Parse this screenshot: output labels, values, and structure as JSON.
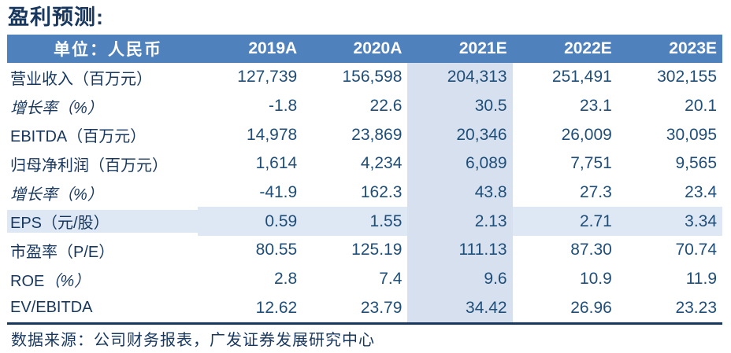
{
  "title": "盈利预测:",
  "colors": {
    "header-bg": "#4F81BD",
    "header-text": "#FFFFFF",
    "label-text": "#17375E",
    "number-text": "#1F4E79",
    "col-highlight": "#D6E0EE",
    "row-highlight": "#DEE8F4",
    "rule": "#17375E",
    "page-bg": "#FFFFFF"
  },
  "table": {
    "unit_header": "单位：人民币",
    "columns": [
      "2019A",
      "2020A",
      "2021E",
      "2022E",
      "2023E"
    ],
    "highlight_column": "2021E",
    "rows": [
      {
        "label": "营业收入（百万元）",
        "italic": false,
        "highlight_row": false,
        "values": [
          "127,739",
          "156,598",
          "204,313",
          "251,491",
          "302,155"
        ]
      },
      {
        "label": "增长率（%）",
        "italic": true,
        "highlight_row": false,
        "values": [
          "-1.8",
          "22.6",
          "30.5",
          "23.1",
          "20.1"
        ]
      },
      {
        "label": "EBITDA（百万元）",
        "italic": false,
        "highlight_row": false,
        "values": [
          "14,978",
          "23,869",
          "20,346",
          "26,009",
          "30,095"
        ]
      },
      {
        "label": "归母净利润（百万元）",
        "italic": false,
        "highlight_row": false,
        "values": [
          "1,614",
          "4,234",
          "6,089",
          "7,751",
          "9,565"
        ]
      },
      {
        "label": "增长率（%）",
        "italic": true,
        "highlight_row": false,
        "values": [
          "-41.9",
          "162.3",
          "43.8",
          "27.3",
          "23.4"
        ]
      },
      {
        "label": "EPS（元/股）",
        "italic": false,
        "highlight_row": true,
        "values": [
          "0.59",
          "1.55",
          "2.13",
          "2.71",
          "3.34"
        ]
      },
      {
        "label": "市盈率（P/E）",
        "italic": false,
        "highlight_row": false,
        "values": [
          "80.55",
          "125.19",
          "111.13",
          "87.30",
          "70.74"
        ]
      },
      {
        "label": "ROE",
        "suffix": "（%）",
        "suffix_italic": true,
        "italic": false,
        "highlight_row": false,
        "values": [
          "2.8",
          "7.4",
          "9.6",
          "10.9",
          "11.9"
        ]
      },
      {
        "label": "EV/EBITDA",
        "italic": false,
        "highlight_row": false,
        "values": [
          "12.62",
          "23.79",
          "34.42",
          "26.96",
          "23.23"
        ]
      }
    ]
  },
  "source": "数据来源：公司财务报表，广发证券发展研究中心"
}
